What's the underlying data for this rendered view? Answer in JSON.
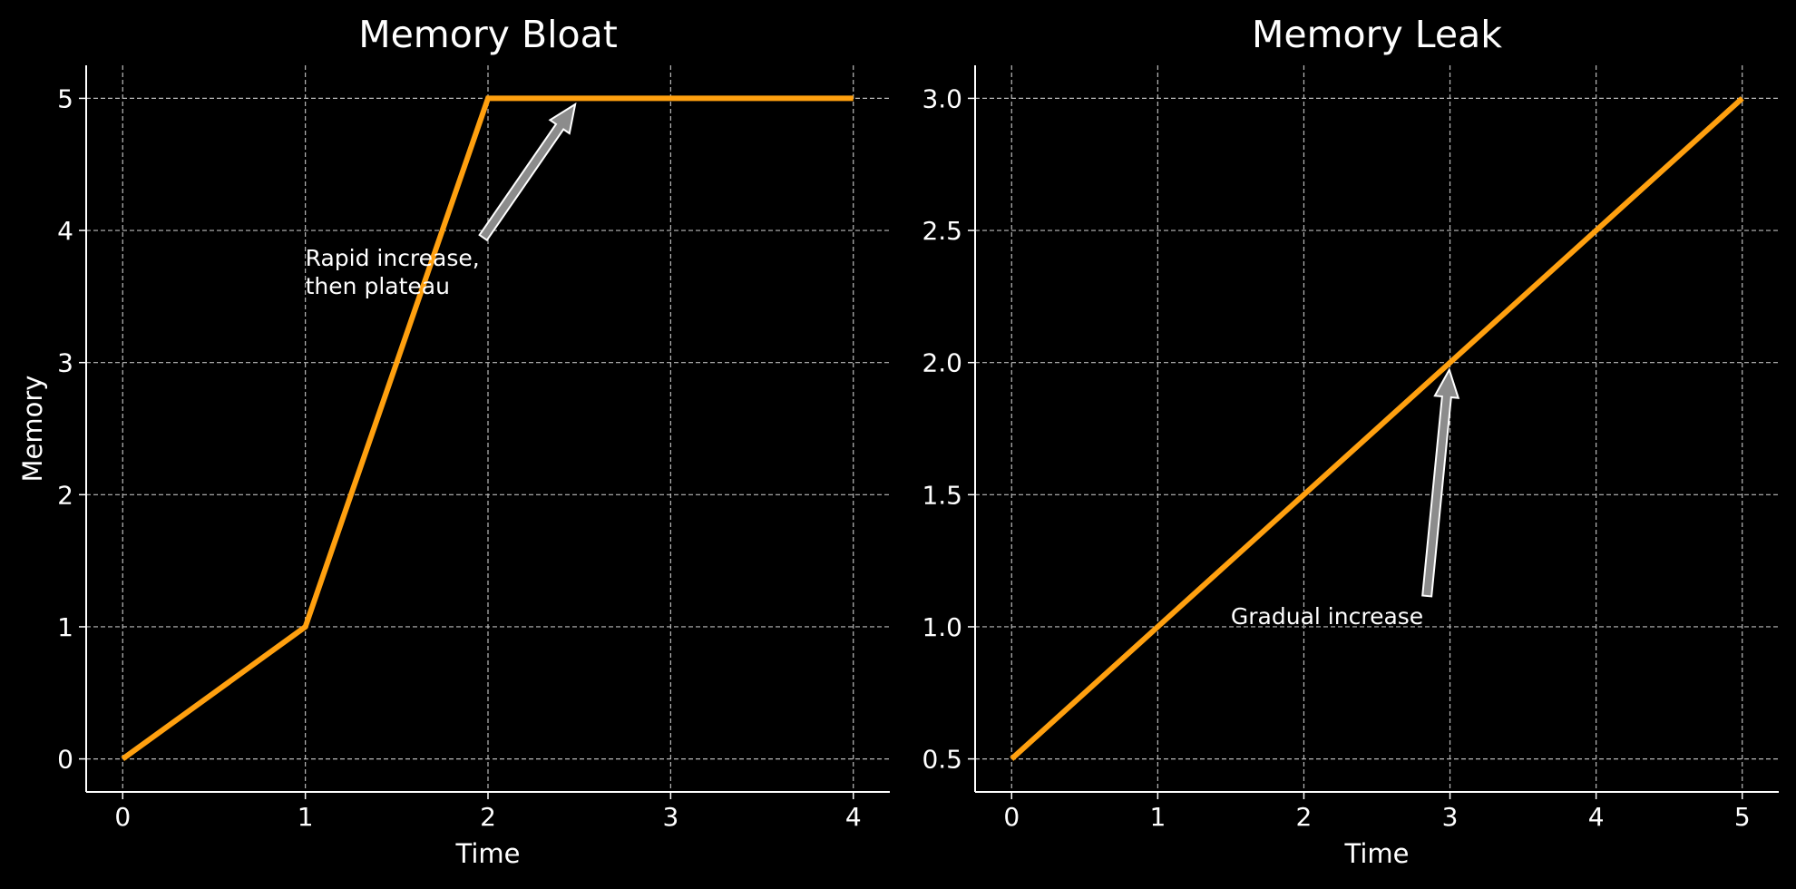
{
  "chart_data": [
    {
      "type": "line",
      "title": "Memory Bloat",
      "x_label": "Time",
      "y_label": "Memory",
      "x": [
        0,
        1,
        2,
        3,
        4
      ],
      "values": [
        0,
        1,
        5,
        5,
        5
      ],
      "color": "#ffa00f",
      "xlim": [
        -0.2,
        4.2
      ],
      "xticks": [
        0,
        1,
        2,
        3,
        4
      ],
      "ylim": [
        -0.25,
        5.25
      ],
      "yticks": [
        0,
        1,
        2,
        3,
        4,
        5
      ],
      "grid": true,
      "annotation": {
        "text": [
          "Rapid increase,",
          "then plateau"
        ],
        "xytext": [
          1,
          3.5
        ],
        "xy": [
          2.5,
          5
        ]
      }
    },
    {
      "type": "line",
      "title": "Memory Leak",
      "x_label": "Time",
      "x": [
        0,
        1,
        2,
        3,
        4,
        5
      ],
      "values": [
        0.5,
        1,
        1.5,
        2,
        2.5,
        3
      ],
      "color": "#ffa00f",
      "xlim": [
        -0.25,
        5.25
      ],
      "xticks": [
        0,
        1,
        2,
        3,
        4,
        5
      ],
      "ylim": [
        0.375,
        3.125
      ],
      "yticks": [
        0.5,
        {
          "value": 1,
          "label": "1.0"
        },
        1.5,
        {
          "value": 2,
          "label": "2.0"
        },
        2.5,
        {
          "value": 3,
          "label": "3.0"
        }
      ],
      "grid": true,
      "annotation": {
        "text": [
          "Gradual increase"
        ],
        "xytext": [
          1.5,
          1
        ],
        "xy": [
          3,
          2
        ]
      }
    }
  ]
}
